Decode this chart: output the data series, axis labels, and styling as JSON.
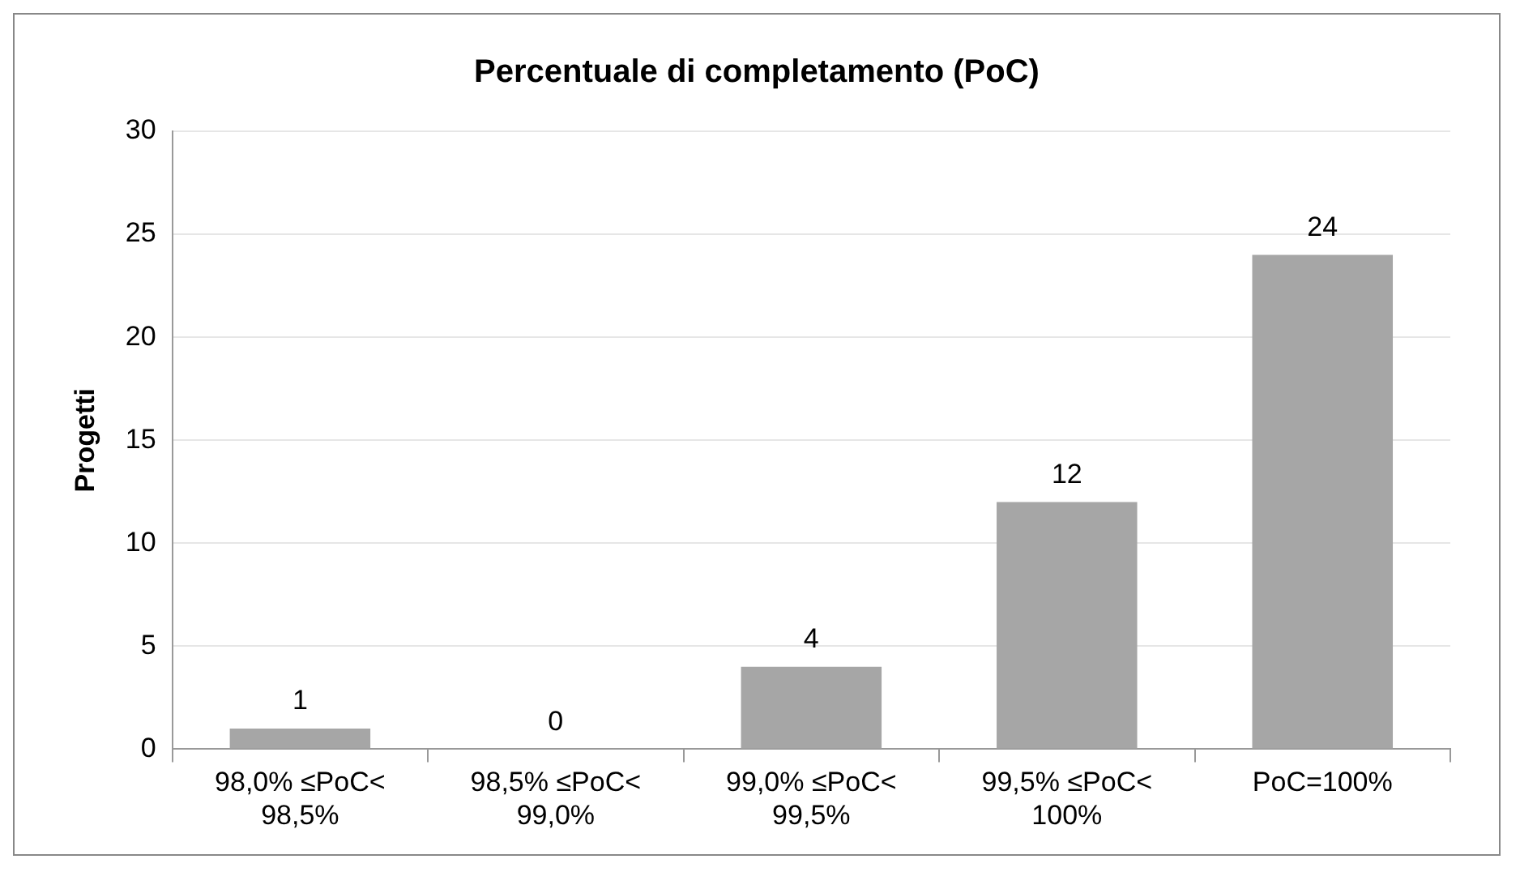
{
  "chart_data": {
    "type": "bar",
    "title": "Percentuale di completamento (PoC)",
    "ylabel": "Progetti",
    "categories": [
      "98,0% ≤PoC< 98,5%",
      "98,5% ≤PoC< 99,0%",
      "99,0% ≤PoC< 99,5%",
      "99,5% ≤PoC< 100%",
      "PoC=100%"
    ],
    "values": [
      1,
      0,
      4,
      12,
      24
    ],
    "color": "#a6a6a6",
    "ylim": [
      0,
      30
    ],
    "yticks": [
      0,
      5,
      10,
      15,
      20,
      25,
      30
    ],
    "grid": "y",
    "data_labels": true
  }
}
